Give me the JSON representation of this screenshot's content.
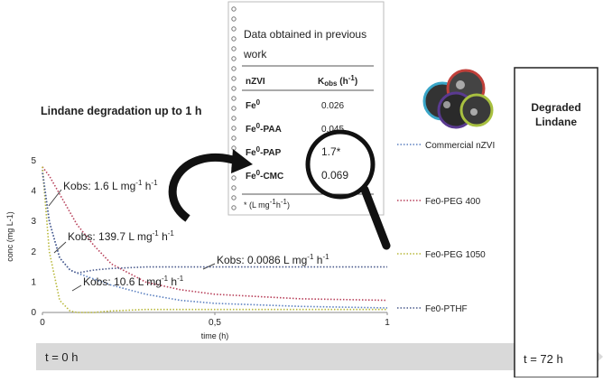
{
  "chart_data": {
    "type": "line",
    "title": "Lindane degradation up to 1 h",
    "xlabel": "time (h)",
    "ylabel": "conc (mg L-1)",
    "x": [
      0,
      0.02,
      0.05,
      0.08,
      0.1,
      0.15,
      0.2,
      0.3,
      0.4,
      0.5,
      0.75,
      1
    ],
    "series": [
      {
        "name": "Commercial nZVI",
        "color": "#5b80c0",
        "values": [
          4.7,
          3.0,
          1.8,
          1.4,
          1.3,
          1.1,
          0.9,
          0.6,
          0.4,
          0.3,
          0.2,
          0.15
        ]
      },
      {
        "name": "Fe0-PEG 400",
        "color": "#b8405a",
        "values": [
          4.8,
          4.5,
          3.9,
          3.3,
          2.9,
          2.2,
          1.6,
          1.0,
          0.75,
          0.6,
          0.45,
          0.4
        ]
      },
      {
        "name": "Fe0-PEG 1050",
        "color": "#b8b83a",
        "values": [
          4.8,
          2.0,
          0.4,
          0.05,
          0,
          0,
          0.05,
          0.1,
          0.1,
          0.1,
          0.1,
          0.1
        ]
      },
      {
        "name": "Fe0-PTHF",
        "color": "#4a5a8c",
        "values": [
          4.6,
          3.0,
          1.8,
          1.4,
          1.3,
          1.4,
          1.45,
          1.5,
          1.5,
          1.5,
          1.5,
          1.5
        ]
      }
    ],
    "xlim": [
      0,
      1
    ],
    "xticks": [
      0,
      {
        "value": 0.5,
        "label": "0,5"
      },
      1
    ],
    "ylim": [
      0,
      5
    ],
    "yticks": [
      0,
      1,
      2,
      3,
      4,
      5
    ],
    "annotations": [
      [
        "Kobs: 1.6 L mg",
        "-1",
        " h",
        "-1"
      ],
      [
        "Kobs: 139.7 L mg",
        "-1",
        " h",
        "-1"
      ],
      [
        "Kobs: 0.0086 L mg",
        "-1",
        " h",
        "-1"
      ],
      [
        "Kobs: 10.6 L mg",
        "-1",
        " h",
        "-1"
      ]
    ]
  },
  "notepad": {
    "lines": [
      "Data obtained in previous",
      "work"
    ],
    "header": {
      "col1": "nZVI",
      "col2": [
        "K",
        "obs",
        " (h",
        "-1",
        ")"
      ]
    },
    "rows": [
      [
        [
          "Fe",
          "0",
          ""
        ],
        "0.026"
      ],
      [
        [
          "Fe",
          "0",
          "-PAA"
        ],
        "0.045"
      ],
      [
        [
          "Fe",
          "0",
          "-PAP"
        ],
        "1.7*"
      ],
      [
        [
          "Fe",
          "0",
          "-CMC"
        ],
        "0.069"
      ]
    ],
    "footnote": [
      "* (L mg",
      "-1",
      "h",
      "-1",
      ")"
    ]
  },
  "panel": {
    "title": [
      "Degraded",
      "Lindane"
    ],
    "start": "t = 0 h",
    "end": "t = 72 h"
  }
}
